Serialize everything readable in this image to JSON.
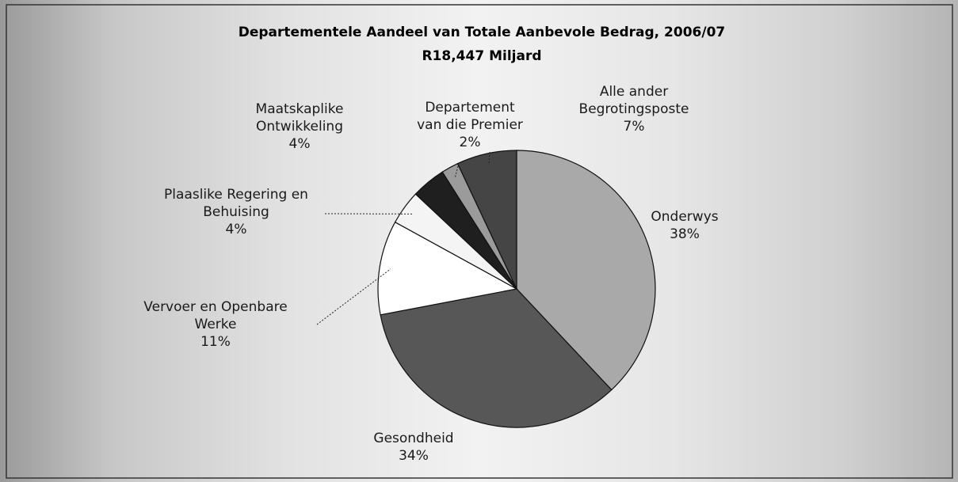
{
  "chart_data": {
    "type": "pie",
    "title": "Departementele Aandeel van Totale Aanbevole Bedrag, 2006/07",
    "subtitle": "R18,447 Miljard",
    "categories": [
      "Onderwys",
      "Gesondheid",
      "Vervoer en Openbare Werke",
      "Plaaslike Regering en Behuising",
      "Maatskaplike Ontwikkeling",
      "Departement van die Premier",
      "Alle ander Begrotingsposte"
    ],
    "values": [
      38,
      34,
      11,
      4,
      4,
      2,
      7
    ],
    "value_labels": [
      "38%",
      "34%",
      "11%",
      "4%",
      "4%",
      "2%",
      "7%"
    ],
    "colors": [
      "#a9a9a9",
      "#575757",
      "#ffffff",
      "#f4f4f4",
      "#1f1f1f",
      "#9b9b9b",
      "#454545"
    ]
  }
}
